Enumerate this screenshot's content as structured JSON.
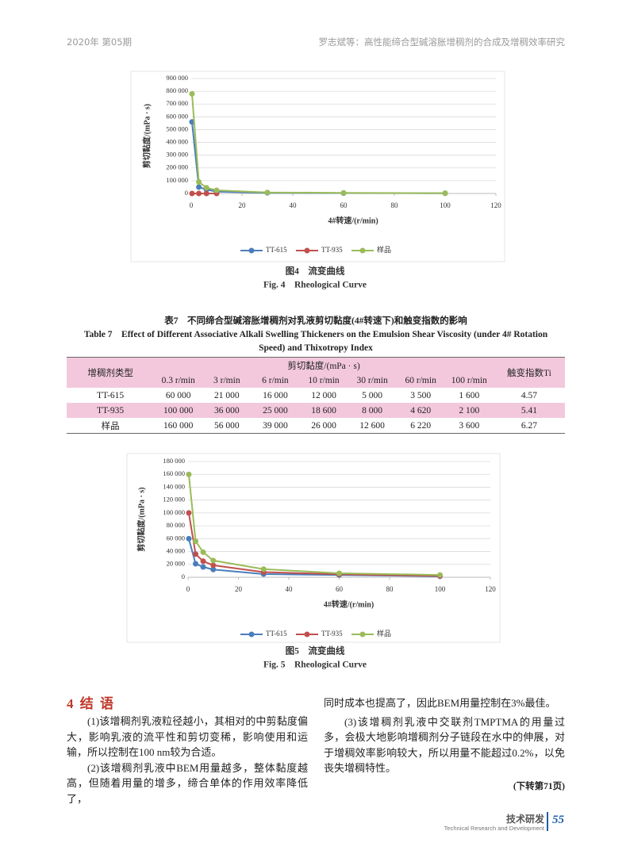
{
  "header": {
    "issue": "2020年 第05期",
    "running_title": "罗志斌等：高性能缔合型碱溶胀增稠剂的合成及增稠效率研究"
  },
  "chart_data": [
    {
      "type": "line",
      "caption": "图4　流变曲线",
      "caption_en": "Fig. 4　Rheological Curve",
      "xlabel": "4#转速/(r/min)",
      "ylabel": "剪切黏度/(mPa · s)",
      "x": [
        0.3,
        3,
        6,
        10,
        30,
        60,
        100
      ],
      "series": [
        {
          "name": "TT-615",
          "color": "#4a7ebb",
          "values": [
            560000,
            50000,
            30000,
            15000,
            5000,
            3000,
            1500
          ]
        },
        {
          "name": "TT-935",
          "color": "#c0504d",
          "values": [
            0,
            0,
            0,
            0,
            null,
            null,
            null
          ]
        },
        {
          "name": "样品",
          "color": "#9bbb59",
          "values": [
            780000,
            90000,
            45000,
            25000,
            8000,
            5000,
            2000
          ]
        }
      ],
      "xlim": [
        0,
        120
      ],
      "xticks": [
        0,
        20,
        40,
        60,
        80,
        100,
        120
      ],
      "ylim": [
        0,
        900000
      ],
      "yticks": [
        0,
        {
          "value": 100000,
          "label": "100 000"
        },
        {
          "value": 200000,
          "label": "200 000"
        },
        {
          "value": 300000,
          "label": "300 000"
        },
        {
          "value": 400000,
          "label": "400 000"
        },
        {
          "value": 500000,
          "label": "500 000"
        },
        {
          "value": 600000,
          "label": "600 000"
        },
        {
          "value": 700000,
          "label": "700 000"
        },
        {
          "value": 800000,
          "label": "800 000"
        },
        {
          "value": 900000,
          "label": "900 000"
        }
      ],
      "grid": true
    },
    {
      "type": "line",
      "caption": "图5　流变曲线",
      "caption_en": "Fig. 5　Rheological Curve",
      "xlabel": "4#转速/(r/min)",
      "ylabel": "剪切黏度/(mPa · s)",
      "x": [
        0.3,
        3,
        6,
        10,
        30,
        60,
        100
      ],
      "series": [
        {
          "name": "TT-615",
          "color": "#4a7ebb",
          "values": [
            60000,
            21000,
            16000,
            12000,
            5000,
            3500,
            1600
          ]
        },
        {
          "name": "TT-935",
          "color": "#c0504d",
          "values": [
            100000,
            36000,
            25000,
            18600,
            8000,
            4620,
            2100
          ]
        },
        {
          "name": "样品",
          "color": "#9bbb59",
          "values": [
            160000,
            56000,
            39000,
            26000,
            12600,
            6220,
            3600
          ]
        }
      ],
      "xlim": [
        0,
        120
      ],
      "xticks": [
        0,
        20,
        40,
        60,
        80,
        100,
        120
      ],
      "ylim": [
        0,
        180000
      ],
      "yticks": [
        0,
        {
          "value": 20000,
          "label": "20 000"
        },
        {
          "value": 40000,
          "label": "40 000"
        },
        {
          "value": 60000,
          "label": "60 000"
        },
        {
          "value": 80000,
          "label": "80 000"
        },
        {
          "value": 100000,
          "label": "100 000"
        },
        {
          "value": 120000,
          "label": "120 000"
        },
        {
          "value": 140000,
          "label": "140 000"
        },
        {
          "value": 160000,
          "label": "160 000"
        },
        {
          "value": 180000,
          "label": "180 000"
        }
      ],
      "grid": true
    }
  ],
  "table": {
    "title": "表7　不同缔合型碱溶胀增稠剂对乳液剪切黏度(4#转速下)和触变指数的影响",
    "title_en": "Table 7　Effect of Different Associative Alkali Swelling Thickeners on the Emulsion Shear Viscosity (under 4# Rotation Speed) and Thixotropy Index",
    "header": [
      "增稠剂类型",
      "剪切黏度/(mPa · s)",
      "触变指数Ti"
    ],
    "subheader": [
      "0.3 r/min",
      "3 r/min",
      "6 r/min",
      "10 r/min",
      "30 r/min",
      "60 r/min",
      "100 r/min"
    ],
    "rows": [
      [
        "TT-615",
        "60 000",
        "21 000",
        "16 000",
        "12 000",
        "5 000",
        "3 500",
        "1 600",
        "4.57"
      ],
      [
        "TT-935",
        "100 000",
        "36 000",
        "25 000",
        "18 600",
        "8 000",
        "4 620",
        "2 100",
        "5.41"
      ],
      [
        "样品",
        "160 000",
        "56 000",
        "39 000",
        "26 000",
        "12 600",
        "6 220",
        "3 600",
        "6.27"
      ]
    ]
  },
  "section": {
    "heading": "4 结 语",
    "paragraphs": [
      "(1)该增稠剂乳液粒径越小，其相对的中剪黏度偏大，影响乳液的流平性和剪切变稀，影响使用和运输，所以控制在100 nm较为合适。",
      "(2)该增稠剂乳液中BEM用量越多，整体黏度越高，但随着用量的增多，缔合单体的作用效率降低了，",
      "同时成本也提高了，因此BEM用量控制在3%最佳。",
      "(3)该增稠剂乳液中交联剂TMPTMA的用量过多，会极大地影响增稠剂分子链段在水中的伸展，对于增稠效率影响较大，所以用量不能超过0.2%，以免丧失增稠特性。"
    ],
    "continued": "(下转第71页)"
  },
  "footer": {
    "section": "技术研发",
    "section_en": "Technical Research and Development",
    "page": "55"
  }
}
